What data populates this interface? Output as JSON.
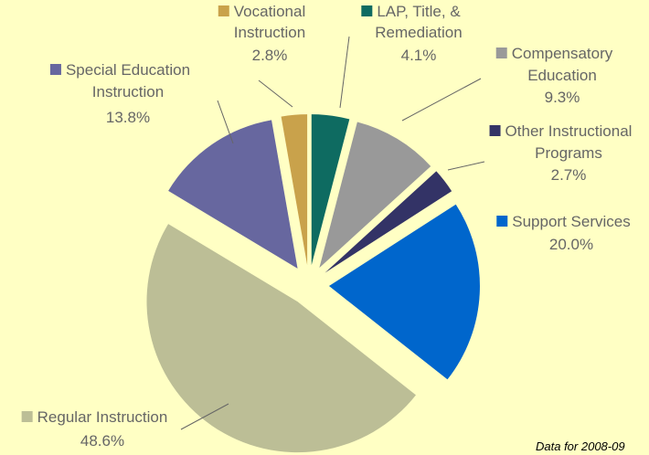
{
  "chart_data": {
    "type": "pie",
    "categories": [
      "Vocational Instruction",
      "LAP, Title, & Remediation",
      "Compensatory Education",
      "Other Instructional Programs",
      "Support Services",
      "Regular Instruction",
      "Special Education Instruction"
    ],
    "values": [
      2.8,
      4.1,
      9.3,
      2.7,
      20.0,
      48.6,
      13.8
    ],
    "value_labels": [
      "2.8%",
      "4.1%",
      "9.3%",
      "2.7%",
      "20.0%",
      "48.6%",
      "13.8%"
    ],
    "colors": [
      "#c9a24b",
      "#0e6b61",
      "#999999",
      "#333366",
      "#0066cc",
      "#bcbe96",
      "#67679f"
    ],
    "note": "Data for 2008-09"
  }
}
